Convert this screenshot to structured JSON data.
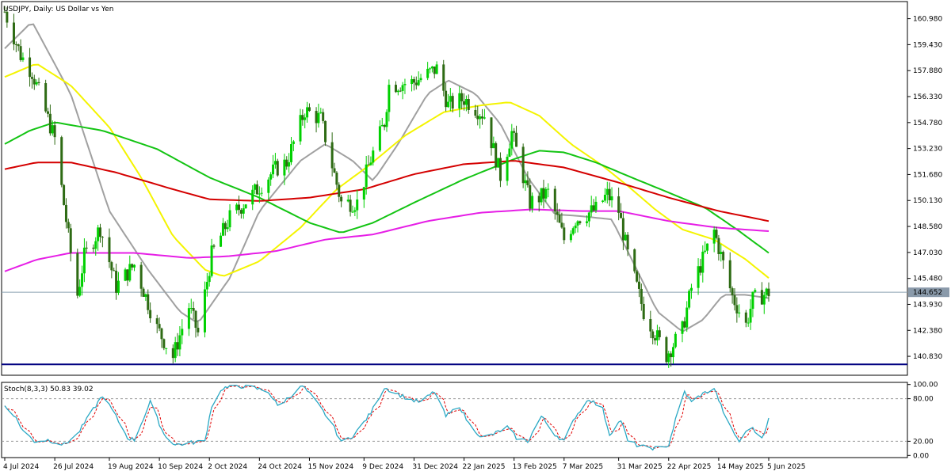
{
  "window": {
    "title": "USDJPY, Daily:  US Dollar vs Yen"
  },
  "colors": {
    "background": "#ffffff",
    "frame": "#000000",
    "bull_candle": "#00d000",
    "bear_candle": "#2e6b14",
    "ma_yellow": "#f4f400",
    "ma_green": "#13c413",
    "ma_red": "#d40000",
    "ma_magenta": "#e61ee6",
    "ma_gray": "#a0a0a0",
    "stoch_main": "#2aa8c4",
    "stoch_signal": "#e00000",
    "support_line": "#000080",
    "price_line": "#8aa0b0",
    "level_dash": "#9a9a9a"
  },
  "price_panel": {
    "ylim": [
      139.7,
      162.0
    ],
    "ticks": [
      "160.980",
      "159.430",
      "157.880",
      "156.330",
      "154.780",
      "153.230",
      "151.680",
      "150.130",
      "148.580",
      "147.030",
      "145.480",
      "143.930",
      "142.380",
      "140.830"
    ],
    "current_price": "144.652",
    "support_level": 140.35
  },
  "stoch_panel": {
    "label": "Stoch(8,3,3) 50.83 39.02",
    "ylim": [
      -3,
      103
    ],
    "ticks": [
      "100.00",
      "80.00",
      "20.00",
      "0.00"
    ],
    "levels": [
      80,
      20
    ]
  },
  "x_axis": {
    "labels": [
      "4 Jul 2024",
      "26 Jul 2024",
      "19 Aug 2024",
      "10 Sep 2024",
      "2 Oct 2024",
      "24 Oct 2024",
      "15 Nov 2024",
      "9 Dec 2024",
      "31 Dec 2024",
      "22 Jan 2025",
      "13 Feb 2025",
      "7 Mar 2025",
      "31 Mar 2025",
      "22 Apr 2025",
      "14 May 2025",
      "5 Jun 2025"
    ]
  },
  "chart_data": {
    "type": "candlestick",
    "symbol": "USDJPY",
    "timeframe": "Daily",
    "x_range": [
      "4 Jul 2024",
      "5 Jun 2025"
    ],
    "price_anchors": [
      [
        "4 Jul 2024",
        161.4
      ],
      [
        "11 Jul 2024",
        158.8
      ],
      [
        "16 Jul 2024",
        157.8
      ],
      [
        "26 Jul 2024",
        153.8
      ],
      [
        "2 Aug 2024",
        147.0
      ],
      [
        "5 Aug 2024",
        144.5
      ],
      [
        "8 Aug 2024",
        146.8
      ],
      [
        "15 Aug 2024",
        148.5
      ],
      [
        "22 Aug 2024",
        145.0
      ],
      [
        "30 Aug 2024",
        146.3
      ],
      [
        "9 Sep 2024",
        142.5
      ],
      [
        "16 Sep 2024",
        140.8
      ],
      [
        "23 Sep 2024",
        143.8
      ],
      [
        "27 Sep 2024",
        142.2
      ],
      [
        "3 Oct 2024",
        146.9
      ],
      [
        "11 Oct 2024",
        149.1
      ],
      [
        "21 Oct 2024",
        150.5
      ],
      [
        "31 Oct 2024",
        152.0
      ],
      [
        "5 Nov 2024",
        152.4
      ],
      [
        "13 Nov 2024",
        155.5
      ],
      [
        "20 Nov 2024",
        155.0
      ],
      [
        "29 Nov 2024",
        150.0
      ],
      [
        "6 Dec 2024",
        150.0
      ],
      [
        "12 Dec 2024",
        152.6
      ],
      [
        "18 Dec 2024",
        154.8
      ],
      [
        "20 Dec 2024",
        157.0
      ],
      [
        "31 Dec 2024",
        157.2
      ],
      [
        "10 Jan 2025",
        158.0
      ],
      [
        "15 Jan 2025",
        155.8
      ],
      [
        "22 Jan 2025",
        156.2
      ],
      [
        "31 Jan 2025",
        155.2
      ],
      [
        "7 Feb 2025",
        151.6
      ],
      [
        "12 Feb 2025",
        154.2
      ],
      [
        "20 Feb 2025",
        150.0
      ],
      [
        "28 Feb 2025",
        150.6
      ],
      [
        "7 Mar 2025",
        147.8
      ],
      [
        "12 Mar 2025",
        149.0
      ],
      [
        "21 Mar 2025",
        149.6
      ],
      [
        "26 Mar 2025",
        150.5
      ],
      [
        "31 Mar 2025",
        149.5
      ],
      [
        "4 Apr 2025",
        146.9
      ],
      [
        "11 Apr 2025",
        143.5
      ],
      [
        "21 Apr 2025",
        140.9
      ],
      [
        "28 Apr 2025",
        142.4
      ],
      [
        "2 May 2025",
        144.9
      ],
      [
        "12 May 2025",
        148.3
      ],
      [
        "20 May 2025",
        144.4
      ],
      [
        "26 May 2025",
        142.7
      ],
      [
        "29 May 2025",
        144.2
      ],
      [
        "5 Jun 2025",
        144.65
      ]
    ],
    "moving_averages": [
      {
        "color": "ma_gray",
        "points": [
          [
            "4 Jul 2024",
            159.2
          ],
          [
            "16 Jul 2024",
            160.8
          ],
          [
            "2 Aug 2024",
            156.5
          ],
          [
            "19 Aug 2024",
            149.5
          ],
          [
            "5 Sep 2024",
            146.0
          ],
          [
            "19 Sep 2024",
            143.5
          ],
          [
            "27 Sep 2024",
            142.8
          ],
          [
            "11 Oct 2024",
            145.5
          ],
          [
            "24 Oct 2024",
            149.5
          ],
          [
            "11 Nov 2024",
            152.5
          ],
          [
            "22 Nov 2024",
            153.5
          ],
          [
            "4 Dec 2024",
            152.5
          ],
          [
            "13 Dec 2024",
            151.3
          ],
          [
            "24 Dec 2024",
            153.5
          ],
          [
            "6 Jan 2025",
            156.5
          ],
          [
            "15 Jan 2025",
            157.3
          ],
          [
            "27 Jan 2025",
            156.5
          ],
          [
            "7 Feb 2025",
            154.7
          ],
          [
            "19 Feb 2025",
            151.5
          ],
          [
            "3 Mar 2025",
            149.3
          ],
          [
            "14 Mar 2025",
            149.2
          ],
          [
            "28 Mar 2025",
            149.0
          ],
          [
            "8 Apr 2025",
            146.0
          ],
          [
            "17 Apr 2025",
            143.5
          ],
          [
            "28 Apr 2025",
            142.3
          ],
          [
            "7 May 2025",
            143.0
          ],
          [
            "16 May 2025",
            144.5
          ],
          [
            "26 May 2025",
            144.5
          ],
          [
            "5 Jun 2025",
            144.3
          ]
        ]
      },
      {
        "color": "ma_yellow",
        "points": [
          [
            "4 Jul 2024",
            157.5
          ],
          [
            "18 Jul 2024",
            158.3
          ],
          [
            "2 Aug 2024",
            157.0
          ],
          [
            "19 Aug 2024",
            154.5
          ],
          [
            "2 Sep 2024",
            151.5
          ],
          [
            "16 Sep 2024",
            148.0
          ],
          [
            "30 Sep 2024",
            146.0
          ],
          [
            "8 Oct 2024",
            145.6
          ],
          [
            "24 Oct 2024",
            146.5
          ],
          [
            "11 Nov 2024",
            148.5
          ],
          [
            "27 Nov 2024",
            150.8
          ],
          [
            "11 Dec 2024",
            152.2
          ],
          [
            "27 Dec 2024",
            154.0
          ],
          [
            "13 Jan 2025",
            155.4
          ],
          [
            "29 Jan 2025",
            155.8
          ],
          [
            "11 Feb 2025",
            156.0
          ],
          [
            "24 Feb 2025",
            155.2
          ],
          [
            "10 Mar 2025",
            153.5
          ],
          [
            "24 Mar 2025",
            152.2
          ],
          [
            "4 Apr 2025",
            151.0
          ],
          [
            "16 Apr 2025",
            149.6
          ],
          [
            "28 Apr 2025",
            148.4
          ],
          [
            "12 May 2025",
            147.8
          ],
          [
            "26 May 2025",
            146.6
          ],
          [
            "5 Jun 2025",
            145.5
          ]
        ]
      },
      {
        "color": "ma_green",
        "points": [
          [
            "4 Jul 2024",
            153.5
          ],
          [
            "15 Jul 2024",
            154.3
          ],
          [
            "26 Jul 2024",
            154.8
          ],
          [
            "16 Aug 2024",
            154.3
          ],
          [
            "9 Sep 2024",
            153.2
          ],
          [
            "2 Oct 2024",
            151.5
          ],
          [
            "24 Oct 2024",
            150.3
          ],
          [
            "15 Nov 2024",
            148.8
          ],
          [
            "29 Nov 2024",
            148.2
          ],
          [
            "13 Dec 2024",
            148.8
          ],
          [
            "31 Dec 2024",
            150.0
          ],
          [
            "22 Jan 2025",
            151.4
          ],
          [
            "13 Feb 2025",
            152.6
          ],
          [
            "24 Feb 2025",
            153.1
          ],
          [
            "7 Mar 2025",
            153.0
          ],
          [
            "21 Mar 2025",
            152.4
          ],
          [
            "4 Apr 2025",
            151.6
          ],
          [
            "22 Apr 2025",
            150.6
          ],
          [
            "8 May 2025",
            149.7
          ],
          [
            "22 May 2025",
            148.4
          ],
          [
            "5 Jun 2025",
            147.0
          ]
        ]
      },
      {
        "color": "ma_red",
        "points": [
          [
            "4 Jul 2024",
            152.0
          ],
          [
            "18 Jul 2024",
            152.4
          ],
          [
            "2 Aug 2024",
            152.4
          ],
          [
            "22 Aug 2024",
            151.8
          ],
          [
            "16 Sep 2024",
            150.8
          ],
          [
            "2 Oct 2024",
            150.2
          ],
          [
            "24 Oct 2024",
            150.1
          ],
          [
            "15 Nov 2024",
            150.3
          ],
          [
            "9 Dec 2024",
            150.8
          ],
          [
            "31 Dec 2024",
            151.7
          ],
          [
            "22 Jan 2025",
            152.3
          ],
          [
            "13 Feb 2025",
            152.5
          ],
          [
            "7 Mar 2025",
            152.1
          ],
          [
            "31 Mar 2025",
            151.2
          ],
          [
            "22 Apr 2025",
            150.3
          ],
          [
            "14 May 2025",
            149.5
          ],
          [
            "5 Jun 2025",
            148.9
          ]
        ]
      },
      {
        "color": "ma_magenta",
        "points": [
          [
            "4 Jul 2024",
            145.9
          ],
          [
            "18 Jul 2024",
            146.6
          ],
          [
            "2 Aug 2024",
            147.0
          ],
          [
            "30 Aug 2024",
            147.0
          ],
          [
            "23 Sep 2024",
            146.7
          ],
          [
            "10 Oct 2024",
            146.8
          ],
          [
            "31 Oct 2024",
            147.1
          ],
          [
            "22 Nov 2024",
            147.8
          ],
          [
            "13 Dec 2024",
            148.1
          ],
          [
            "6 Jan 2025",
            148.9
          ],
          [
            "29 Jan 2025",
            149.4
          ],
          [
            "21 Feb 2025",
            149.6
          ],
          [
            "14 Mar 2025",
            149.5
          ],
          [
            "31 Mar 2025",
            149.5
          ],
          [
            "22 Apr 2025",
            148.9
          ],
          [
            "14 May 2025",
            148.5
          ],
          [
            "5 Jun 2025",
            148.3
          ]
        ]
      }
    ],
    "stochastic": {
      "k_period": 8,
      "d_period": 3,
      "slowing": 3,
      "main_value": 50.83,
      "signal_value": 39.02,
      "main_anchors": [
        [
          "4 Jul 2024",
          70
        ],
        [
          "8 Jul 2024",
          58
        ],
        [
          "12 Jul 2024",
          35
        ],
        [
          "17 Jul 2024",
          20
        ],
        [
          "23 Jul 2024",
          22
        ],
        [
          "30 Jul 2024",
          15
        ],
        [
          "5 Aug 2024",
          30
        ],
        [
          "12 Aug 2024",
          65
        ],
        [
          "16 Aug 2024",
          85
        ],
        [
          "21 Aug 2024",
          60
        ],
        [
          "27 Aug 2024",
          25
        ],
        [
          "30 Aug 2024",
          22
        ],
        [
          "4 Sep 2024",
          60
        ],
        [
          "6 Sep 2024",
          75
        ],
        [
          "12 Sep 2024",
          30
        ],
        [
          "17 Sep 2024",
          15
        ],
        [
          "24 Sep 2024",
          18
        ],
        [
          "30 Sep 2024",
          20
        ],
        [
          "3 Oct 2024",
          70
        ],
        [
          "8 Oct 2024",
          95
        ],
        [
          "18 Oct 2024",
          98
        ],
        [
          "28 Oct 2024",
          90
        ],
        [
          "1 Nov 2024",
          70
        ],
        [
          "6 Nov 2024",
          82
        ],
        [
          "12 Nov 2024",
          98
        ],
        [
          "18 Nov 2024",
          75
        ],
        [
          "25 Nov 2024",
          45
        ],
        [
          "29 Nov 2024",
          18
        ],
        [
          "5 Dec 2024",
          30
        ],
        [
          "12 Dec 2024",
          60
        ],
        [
          "18 Dec 2024",
          96
        ],
        [
          "25 Dec 2024",
          85
        ],
        [
          "30 Dec 2024",
          78
        ],
        [
          "3 Jan 2025",
          75
        ],
        [
          "9 Jan 2025",
          90
        ],
        [
          "14 Jan 2025",
          55
        ],
        [
          "20 Jan 2025",
          70
        ],
        [
          "24 Jan 2025",
          45
        ],
        [
          "30 Jan 2025",
          25
        ],
        [
          "4 Feb 2025",
          30
        ],
        [
          "10 Feb 2025",
          40
        ],
        [
          "14 Feb 2025",
          25
        ],
        [
          "19 Feb 2025",
          20
        ],
        [
          "25 Feb 2025",
          55
        ],
        [
          "3 Mar 2025",
          30
        ],
        [
          "7 Mar 2025",
          20
        ],
        [
          "12 Mar 2025",
          55
        ],
        [
          "18 Mar 2025",
          80
        ],
        [
          "24 Mar 2025",
          65
        ],
        [
          "27 Mar 2025",
          30
        ],
        [
          "1 Apr 2025",
          50
        ],
        [
          "4 Apr 2025",
          20
        ],
        [
          "10 Apr 2025",
          12
        ],
        [
          "17 Apr 2025",
          10
        ],
        [
          "22 Apr 2025",
          15
        ],
        [
          "25 Apr 2025",
          50
        ],
        [
          "29 Apr 2025",
          90
        ],
        [
          "2 May 2025",
          75
        ],
        [
          "6 May 2025",
          85
        ],
        [
          "12 May 2025",
          95
        ],
        [
          "15 May 2025",
          70
        ],
        [
          "19 May 2025",
          40
        ],
        [
          "23 May 2025",
          20
        ],
        [
          "28 May 2025",
          40
        ],
        [
          "2 Jun 2025",
          25
        ],
        [
          "5 Jun 2025",
          50.83
        ]
      ]
    }
  }
}
